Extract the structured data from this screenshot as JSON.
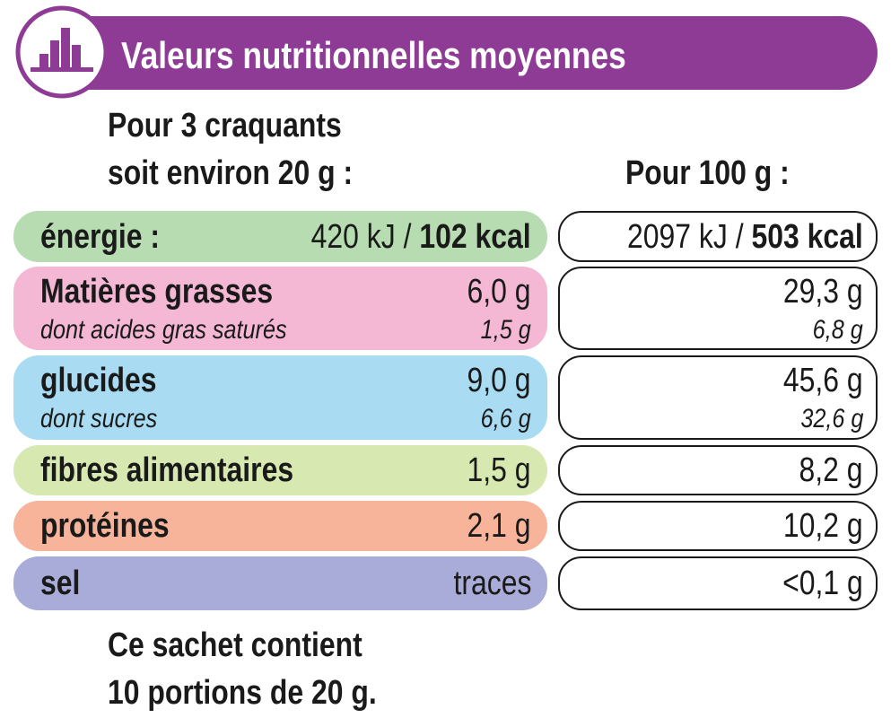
{
  "header": {
    "title": "Valeurs nutritionnelles moyennes"
  },
  "columns": {
    "portion": [
      "Pour 3 craquants",
      "soit environ 20 g :"
    ],
    "per100": "Pour 100 g :"
  },
  "rows": [
    {
      "label": "énergie :",
      "portion": {
        "kj": "420 kJ",
        "sep": "/",
        "kcal": "102 kcal"
      },
      "per100": {
        "kj": "2097 kJ",
        "sep": "/",
        "kcal": "503 kcal"
      }
    },
    {
      "label": "Matières grasses",
      "portion": "6,0 g",
      "per100": "29,3 g",
      "sub": {
        "label": "dont acides gras saturés",
        "portion": "1,5 g",
        "per100": "6,8 g"
      }
    },
    {
      "label": "glucides",
      "portion": "9,0 g",
      "per100": "45,6 g",
      "sub": {
        "label": "dont sucres",
        "portion": "6,6 g",
        "per100": "32,6 g"
      }
    },
    {
      "label": "fibres alimentaires",
      "portion": "1,5 g",
      "per100": "8,2 g"
    },
    {
      "label": "protéines",
      "portion": "2,1 g",
      "per100": "10,2 g"
    },
    {
      "label": "sel",
      "portion": "traces",
      "per100": "<0,1 g"
    }
  ],
  "footer": [
    "Ce sachet contient",
    "10 portions de 20 g."
  ]
}
